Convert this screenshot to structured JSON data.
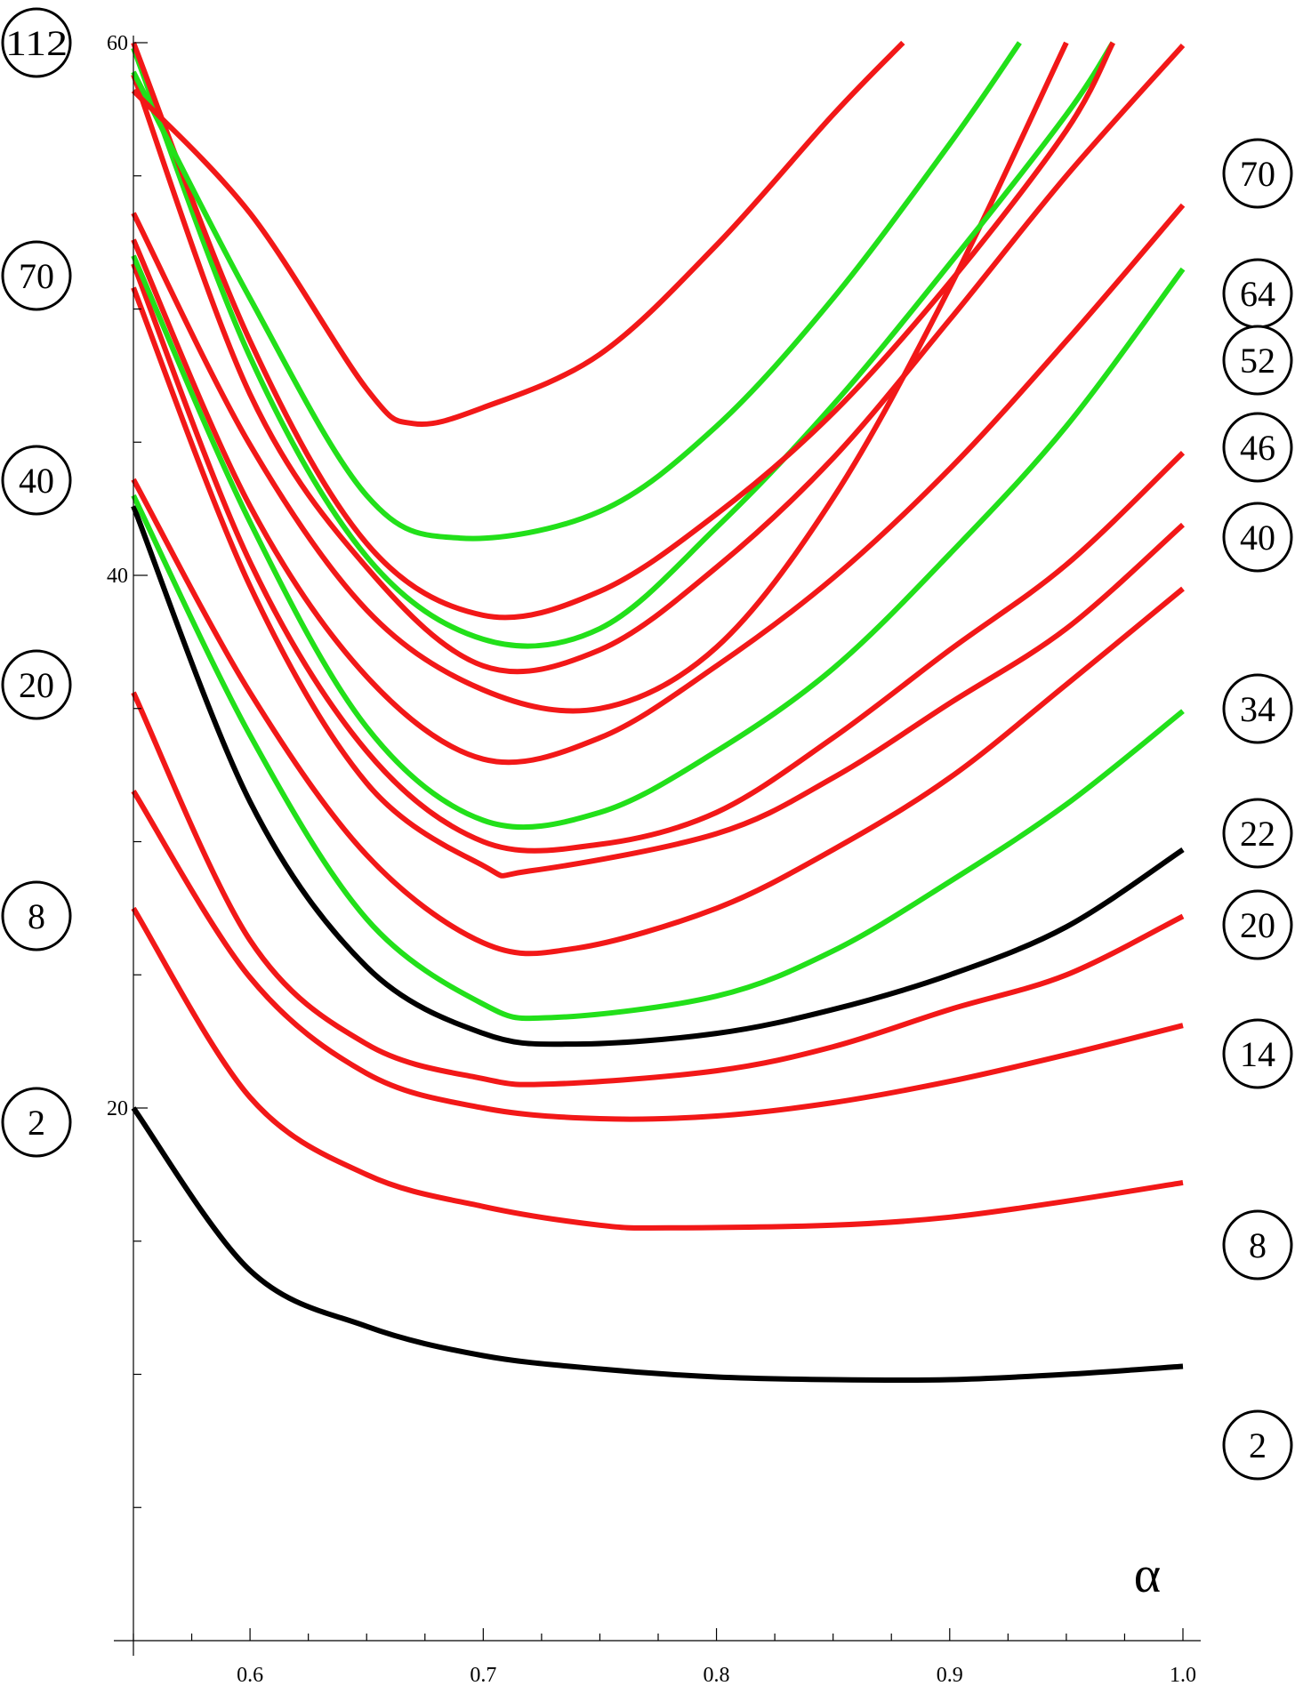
{
  "chart_data": {
    "type": "line",
    "title": "",
    "xlabel": "α",
    "ylabel": "",
    "xlim": [
      0.55,
      1.0
    ],
    "ylim": [
      0,
      60
    ],
    "x_ticks": [
      "0.6",
      "0.7",
      "0.8",
      "0.9",
      "1.0"
    ],
    "y_ticks": [
      "20",
      "40",
      "60"
    ],
    "colors": {
      "red": "#f21818",
      "green": "#22e01a",
      "black": "#000000"
    },
    "left_labels": [
      "112",
      "70",
      "40",
      "20",
      "8",
      "2"
    ],
    "right_labels": [
      "70",
      "64",
      "52",
      "46",
      "40",
      "34",
      "22",
      "20",
      "14",
      "8",
      "2"
    ],
    "series": [
      {
        "color": "black",
        "points": [
          [
            0.55,
            20.0
          ],
          [
            0.6,
            13.9
          ],
          [
            0.65,
            11.8
          ],
          [
            0.7,
            10.7
          ],
          [
            0.75,
            10.2
          ],
          [
            0.8,
            9.9
          ],
          [
            0.85,
            9.8
          ],
          [
            0.9,
            9.8
          ],
          [
            0.95,
            10.0
          ],
          [
            1.0,
            10.3
          ]
        ]
      },
      {
        "color": "red",
        "points": [
          [
            0.55,
            27.5
          ],
          [
            0.6,
            20.4
          ],
          [
            0.65,
            17.5
          ],
          [
            0.7,
            16.3
          ],
          [
            0.75,
            15.6
          ],
          [
            0.78,
            15.5
          ],
          [
            0.85,
            15.6
          ],
          [
            0.9,
            15.9
          ],
          [
            0.95,
            16.5
          ],
          [
            1.0,
            17.2
          ]
        ]
      },
      {
        "color": "red",
        "points": [
          [
            0.55,
            31.9
          ],
          [
            0.6,
            24.9
          ],
          [
            0.65,
            21.3
          ],
          [
            0.7,
            20.0
          ],
          [
            0.75,
            19.6
          ],
          [
            0.8,
            19.7
          ],
          [
            0.85,
            20.2
          ],
          [
            0.9,
            21.0
          ],
          [
            0.95,
            22.0
          ],
          [
            1.0,
            23.1
          ]
        ]
      },
      {
        "color": "red",
        "points": [
          [
            0.55,
            35.6
          ],
          [
            0.6,
            26.3
          ],
          [
            0.65,
            22.4
          ],
          [
            0.7,
            21.1
          ],
          [
            0.73,
            20.9
          ],
          [
            0.8,
            21.4
          ],
          [
            0.85,
            22.3
          ],
          [
            0.9,
            23.7
          ],
          [
            0.95,
            25.0
          ],
          [
            1.0,
            27.2
          ]
        ]
      },
      {
        "color": "black",
        "points": [
          [
            0.55,
            42.6
          ],
          [
            0.6,
            31.5
          ],
          [
            0.65,
            25.3
          ],
          [
            0.7,
            22.8
          ],
          [
            0.74,
            22.4
          ],
          [
            0.8,
            22.8
          ],
          [
            0.85,
            23.7
          ],
          [
            0.9,
            25.0
          ],
          [
            0.95,
            26.8
          ],
          [
            1.0,
            29.7
          ]
        ]
      },
      {
        "color": "green",
        "points": [
          [
            0.55,
            43.0
          ],
          [
            0.6,
            34.0
          ],
          [
            0.65,
            27.1
          ],
          [
            0.7,
            23.9
          ],
          [
            0.73,
            23.4
          ],
          [
            0.8,
            24.2
          ],
          [
            0.85,
            25.9
          ],
          [
            0.9,
            28.5
          ],
          [
            0.95,
            31.4
          ],
          [
            1.0,
            34.9
          ]
        ]
      },
      {
        "color": "red",
        "points": [
          [
            0.55,
            43.6
          ],
          [
            0.6,
            35.6
          ],
          [
            0.65,
            29.5
          ],
          [
            0.7,
            26.2
          ],
          [
            0.74,
            26.0
          ],
          [
            0.8,
            27.5
          ],
          [
            0.85,
            29.7
          ],
          [
            0.9,
            32.4
          ],
          [
            0.95,
            35.9
          ],
          [
            1.0,
            39.5
          ]
        ]
      },
      {
        "color": "red",
        "points": [
          [
            0.55,
            50.8
          ],
          [
            0.6,
            39.6
          ],
          [
            0.65,
            32.2
          ],
          [
            0.7,
            29.1
          ],
          [
            0.72,
            28.9
          ],
          [
            0.8,
            30.3
          ],
          [
            0.85,
            32.4
          ],
          [
            0.9,
            35.2
          ],
          [
            0.95,
            38.0
          ],
          [
            1.0,
            41.9
          ]
        ]
      },
      {
        "color": "red",
        "points": [
          [
            0.55,
            51.7
          ],
          [
            0.6,
            40.5
          ],
          [
            0.65,
            33.4
          ],
          [
            0.7,
            30.0
          ],
          [
            0.75,
            29.9
          ],
          [
            0.8,
            31.1
          ],
          [
            0.85,
            33.9
          ],
          [
            0.9,
            37.2
          ],
          [
            0.95,
            40.4
          ],
          [
            1.0,
            44.6
          ]
        ]
      },
      {
        "color": "green",
        "points": [
          [
            0.55,
            52.0
          ],
          [
            0.6,
            42.0
          ],
          [
            0.65,
            34.3
          ],
          [
            0.7,
            30.8
          ],
          [
            0.75,
            31.1
          ],
          [
            0.8,
            33.4
          ],
          [
            0.85,
            36.5
          ],
          [
            0.9,
            40.8
          ],
          [
            0.95,
            45.6
          ],
          [
            1.0,
            51.5
          ]
        ]
      },
      {
        "color": "red",
        "points": [
          [
            0.55,
            52.6
          ],
          [
            0.6,
            42.6
          ],
          [
            0.65,
            36.2
          ],
          [
            0.7,
            33.1
          ],
          [
            0.75,
            33.9
          ],
          [
            0.8,
            36.6
          ],
          [
            0.85,
            39.9
          ],
          [
            0.9,
            44.0
          ],
          [
            0.95,
            48.8
          ],
          [
            1.0,
            53.9
          ]
        ]
      },
      {
        "color": "red",
        "points": [
          [
            0.55,
            53.6
          ],
          [
            0.6,
            44.9
          ],
          [
            0.65,
            38.7
          ],
          [
            0.7,
            35.7
          ],
          [
            0.75,
            35.0
          ],
          [
            0.8,
            37.3
          ],
          [
            0.85,
            42.9
          ],
          [
            0.9,
            50.8
          ],
          [
            0.95,
            60.0
          ]
        ]
      },
      {
        "color": "red",
        "points": [
          [
            0.55,
            58.8
          ],
          [
            0.6,
            46.8
          ],
          [
            0.65,
            40.3
          ],
          [
            0.7,
            36.6
          ],
          [
            0.75,
            37.2
          ],
          [
            0.8,
            40.3
          ],
          [
            0.85,
            44.4
          ],
          [
            0.9,
            49.6
          ],
          [
            0.95,
            55.0
          ],
          [
            1.0,
            59.9
          ]
        ]
      },
      {
        "color": "green",
        "points": [
          [
            0.55,
            59.8
          ],
          [
            0.6,
            48.2
          ],
          [
            0.65,
            40.7
          ],
          [
            0.7,
            37.6
          ],
          [
            0.75,
            38.0
          ],
          [
            0.8,
            41.8
          ],
          [
            0.85,
            46.4
          ],
          [
            0.9,
            51.7
          ],
          [
            0.95,
            57.3
          ],
          [
            0.97,
            60.0
          ]
        ]
      },
      {
        "color": "red",
        "points": [
          [
            0.55,
            60.0
          ],
          [
            0.6,
            48.8
          ],
          [
            0.65,
            41.2
          ],
          [
            0.7,
            38.5
          ],
          [
            0.75,
            39.4
          ],
          [
            0.8,
            42.3
          ],
          [
            0.85,
            46.1
          ],
          [
            0.9,
            51.0
          ],
          [
            0.95,
            56.7
          ],
          [
            0.97,
            60.0
          ]
        ]
      },
      {
        "color": "green",
        "points": [
          [
            0.55,
            58.9
          ],
          [
            0.6,
            50.4
          ],
          [
            0.65,
            43.0
          ],
          [
            0.69,
            41.4
          ],
          [
            0.75,
            42.4
          ],
          [
            0.8,
            45.6
          ],
          [
            0.85,
            50.4
          ],
          [
            0.9,
            56.2
          ],
          [
            0.93,
            60.0
          ]
        ]
      },
      {
        "color": "red",
        "points": [
          [
            0.55,
            58.2
          ],
          [
            0.6,
            53.6
          ],
          [
            0.65,
            47.0
          ],
          [
            0.67,
            45.7
          ],
          [
            0.7,
            46.3
          ],
          [
            0.75,
            48.3
          ],
          [
            0.8,
            52.4
          ],
          [
            0.85,
            57.3
          ],
          [
            0.88,
            60.0
          ]
        ]
      }
    ]
  }
}
